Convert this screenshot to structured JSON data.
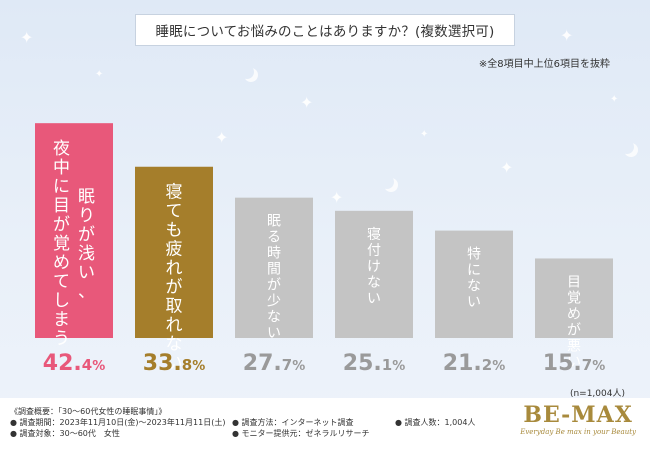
{
  "chart_data": {
    "type": "bar",
    "title": "睡眠についてお悩みのことはありますか？(複数選択可)",
    "subtitle": "※全8項目中上位6項目を抜粋",
    "categories": [
      "夜中に目が覚めてしまう 眠りが浅い、",
      "寝ても疲れが取れない",
      "眠る時間が少ない",
      "寝付けない",
      "特にない",
      "目覚めが悪い"
    ],
    "values": [
      42.4,
      33.8,
      27.7,
      25.1,
      21.2,
      15.7
    ],
    "value_labels": [
      {
        "int": "42.",
        "dec": "4",
        "unit": "%"
      },
      {
        "int": "33.",
        "dec": "8",
        "unit": "%"
      },
      {
        "int": "27.",
        "dec": "7",
        "unit": "%"
      },
      {
        "int": "25.",
        "dec": "1",
        "unit": "%"
      },
      {
        "int": "21.",
        "dec": "2",
        "unit": "%"
      },
      {
        "int": "15.",
        "dec": "7",
        "unit": "%"
      }
    ],
    "bar_labels": [
      [
        "夜中に目が覚めてしまう",
        "眠りが浅い、"
      ],
      [
        "寝ても疲れが取れない"
      ],
      [
        "眠る時間が少ない"
      ],
      [
        "寝付けない"
      ],
      [
        "特にない"
      ],
      [
        "目覚めが悪い"
      ]
    ],
    "colors": [
      "#e8587a",
      "#a57e2b",
      "#c4c4c4",
      "#c4c4c4",
      "#c4c4c4",
      "#c4c4c4"
    ],
    "label_colors": [
      "#e8587a",
      "#a57e2b",
      "#9a9a9a",
      "#9a9a9a",
      "#9a9a9a",
      "#9a9a9a"
    ],
    "ylim": [
      0,
      45
    ],
    "sample_note": "(n=1,004人)"
  },
  "footer": {
    "overview": "《調査概要：「30〜60代女性の睡眠事情」》",
    "period": "● 調査期間：2023年11月10日(金)〜2023年11月11日(土)",
    "target": "● 調査対象：30〜60代　女性",
    "method": "● 調査方法：インターネット調査",
    "provider": "● モニター提供元：ゼネラルリサーチ",
    "count": "● 調査人数：1,004人"
  },
  "brand": {
    "logo": "BE-MAX",
    "tagline": "Everyday Be max in your Beauty"
  }
}
